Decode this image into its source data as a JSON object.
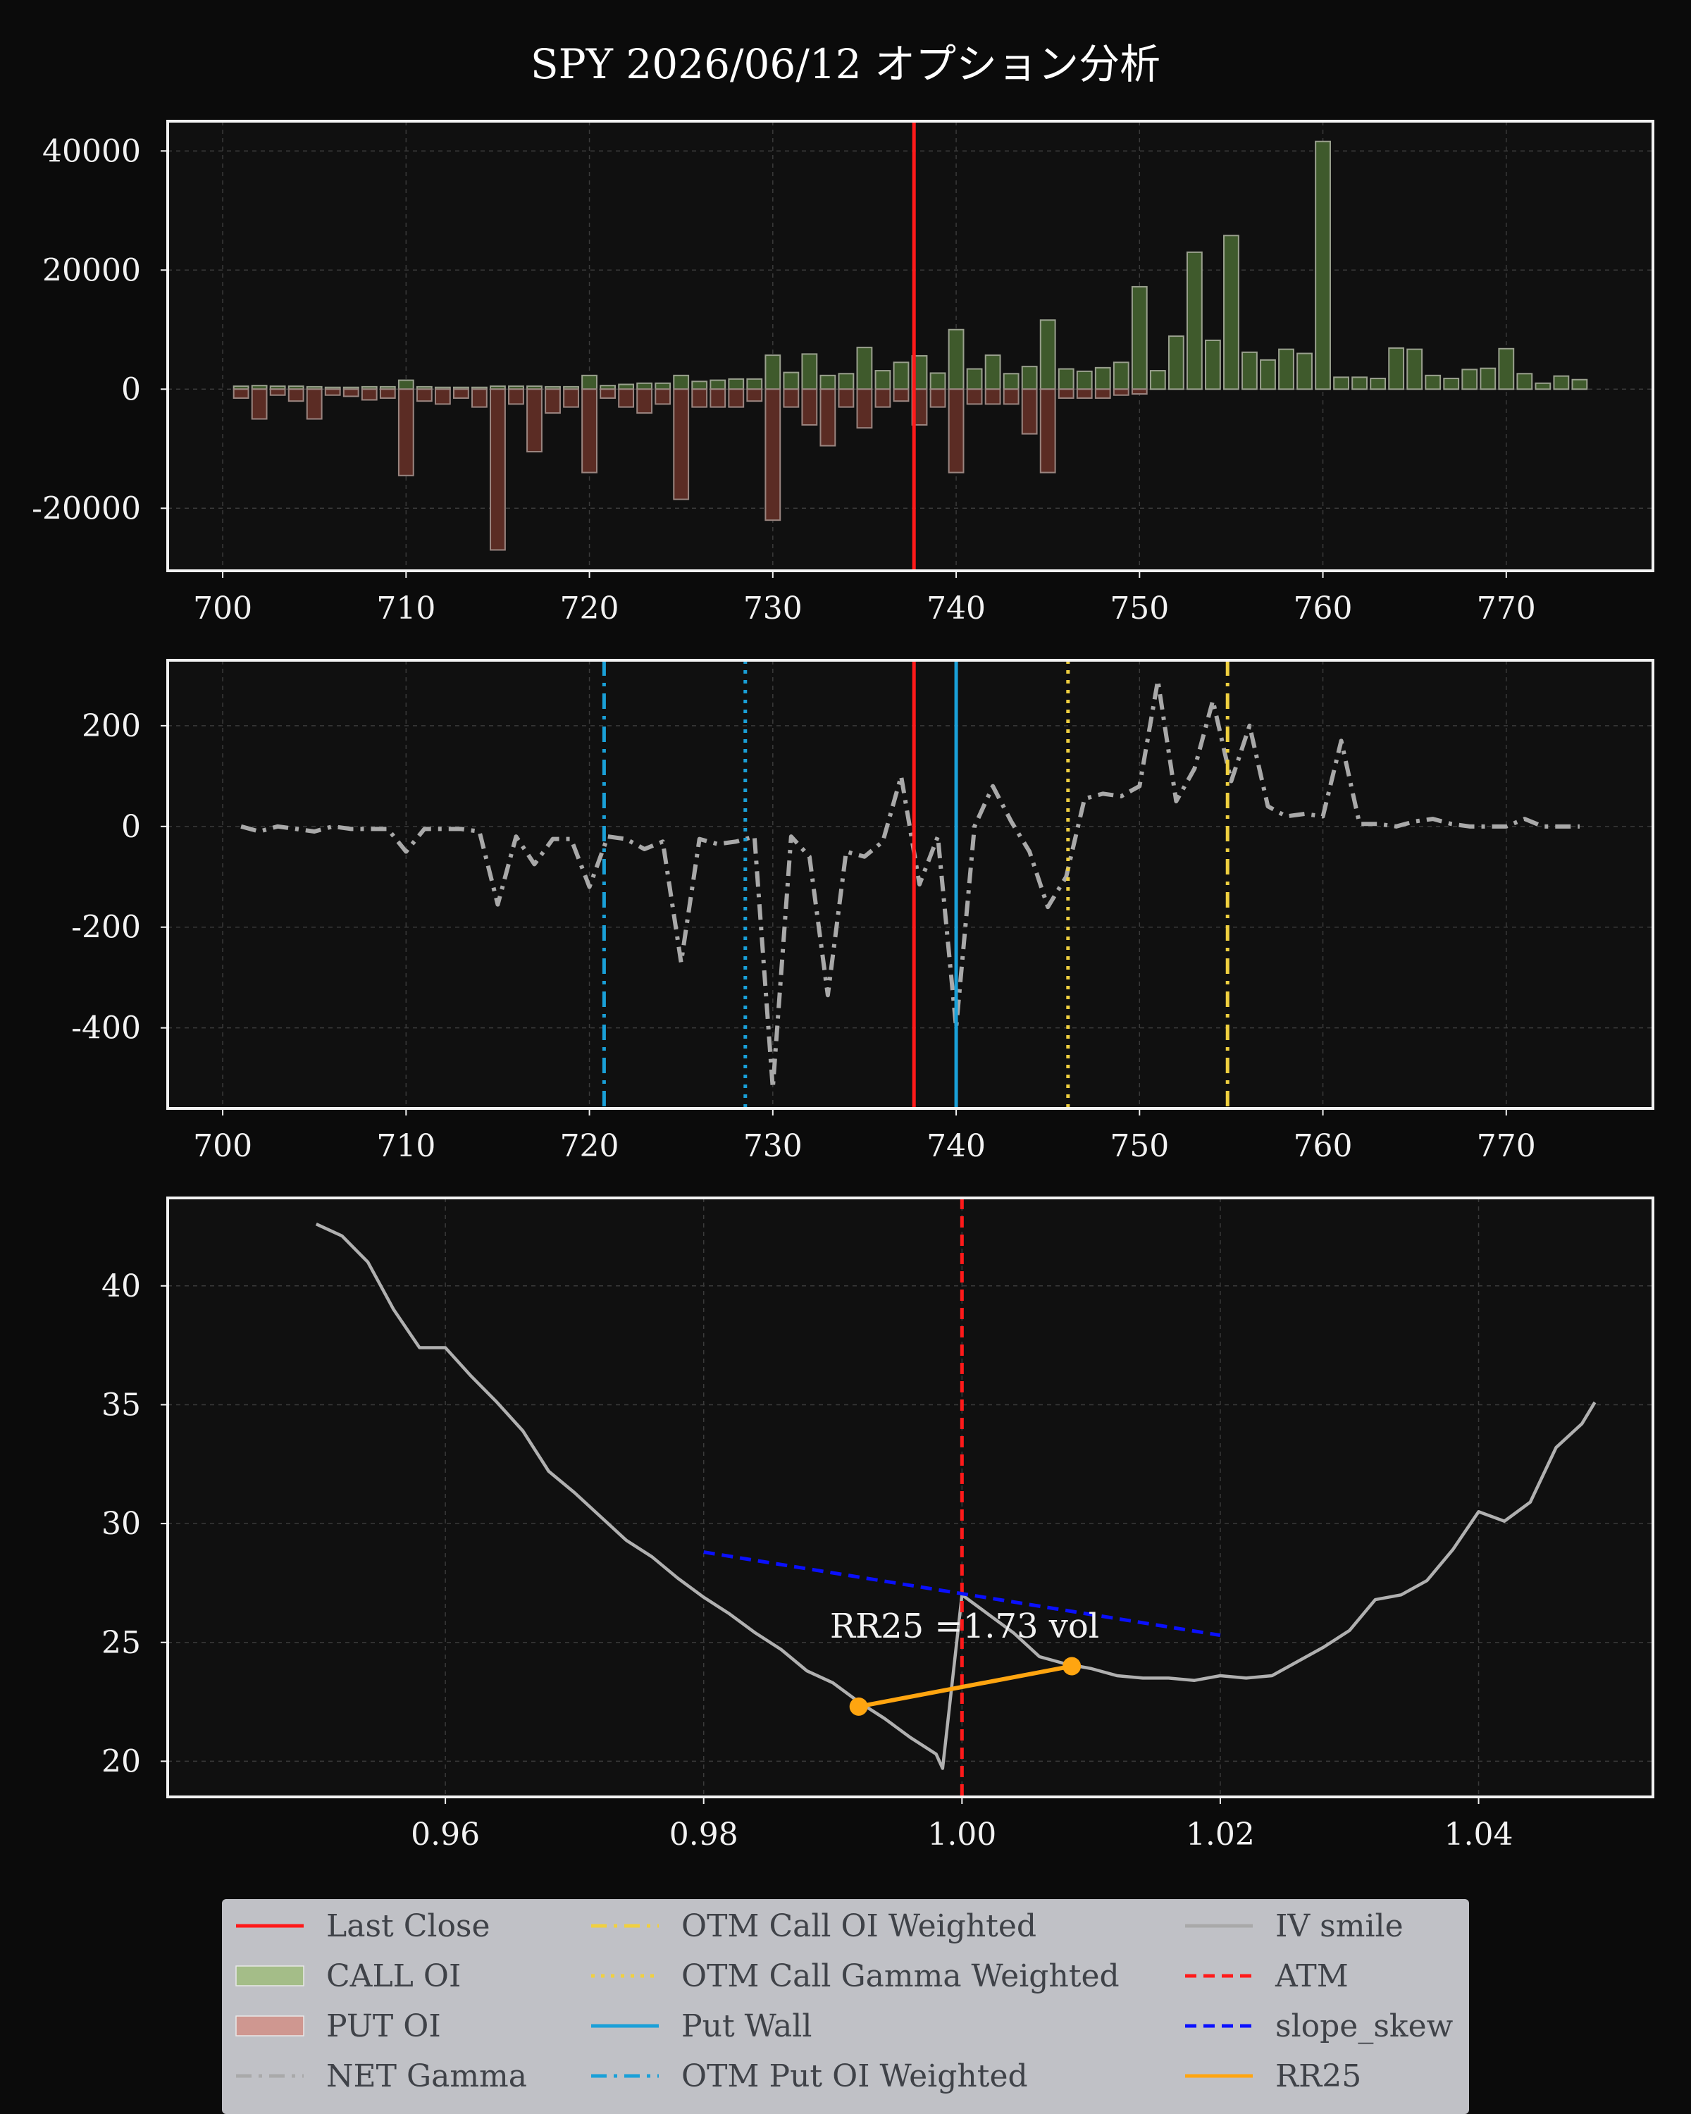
{
  "title": "SPY 2026/06/12 オプション分析",
  "colors": {
    "background": "#0b0b0b",
    "plot_bg": "#101010",
    "call": "#3f5a2c",
    "put": "#5b2c24",
    "last_close": "#ff1a1a",
    "net_gamma": "#a9a9a9",
    "put_wall": "#1aa0d8",
    "otm_put": "#1aa0d8",
    "otm_call": "#f0d040",
    "slope": "#0a10ff",
    "rr25": "#ffa510",
    "iv": "#b0b0b0"
  },
  "chart_data": [
    {
      "type": "bar",
      "panel": "oi",
      "strikes": [
        701,
        702,
        703,
        704,
        705,
        706,
        707,
        708,
        709,
        710,
        711,
        712,
        713,
        714,
        715,
        716,
        717,
        718,
        719,
        720,
        721,
        722,
        723,
        724,
        725,
        726,
        727,
        728,
        729,
        730,
        731,
        732,
        733,
        734,
        735,
        736,
        737,
        738,
        739,
        740,
        741,
        742,
        743,
        744,
        745,
        746,
        747,
        748,
        749,
        750,
        751,
        752,
        753,
        754,
        755,
        756,
        757,
        758,
        759,
        760,
        761,
        762,
        763,
        764,
        765,
        766,
        767,
        768,
        769,
        770,
        771,
        772,
        773,
        774
      ],
      "series": [
        {
          "name": "CALL OI",
          "values": [
            500,
            600,
            500,
            500,
            400,
            300,
            300,
            400,
            400,
            1500,
            400,
            300,
            300,
            300,
            500,
            500,
            500,
            400,
            400,
            2300,
            600,
            800,
            1000,
            1000,
            2300,
            1300,
            1500,
            1700,
            1700,
            5700,
            2800,
            5900,
            2300,
            2600,
            7000,
            3100,
            4500,
            5600,
            2700,
            10000,
            3400,
            5700,
            2600,
            3800,
            11600,
            3400,
            3000,
            3600,
            4500,
            17200,
            3100,
            8900,
            23000,
            8200,
            25800,
            6200,
            4900,
            6700,
            6000,
            41600,
            2000,
            2000,
            1800,
            6900,
            6700,
            2300,
            1800,
            3300,
            3500,
            6800,
            2600,
            1000,
            2200,
            1600
          ]
        },
        {
          "name": "PUT OI",
          "values": [
            -1500,
            -5000,
            -1000,
            -2000,
            -5000,
            -1000,
            -1200,
            -1800,
            -1500,
            -14500,
            -2000,
            -2500,
            -1500,
            -3000,
            -27000,
            -2500,
            -10500,
            -4000,
            -3000,
            -14000,
            -1500,
            -3000,
            -4000,
            -2500,
            -18500,
            -3000,
            -3000,
            -3000,
            -2000,
            -22000,
            -3000,
            -6000,
            -9500,
            -3000,
            -6500,
            -3000,
            -2000,
            -6000,
            -3000,
            -14000,
            -2500,
            -2500,
            -2500,
            -7500,
            -14000,
            -1500,
            -1500,
            -1500,
            -1000,
            -800,
            0,
            0,
            0,
            0,
            0,
            0,
            0,
            0,
            0,
            0,
            0,
            0,
            0,
            0,
            0,
            0,
            0,
            0,
            0,
            0,
            0,
            0,
            0,
            0
          ]
        }
      ],
      "ylim": [
        -30500,
        45000
      ],
      "xlim": [
        697,
        778
      ],
      "yticks": [
        "40000",
        "20000",
        "0",
        "-20000"
      ],
      "xticks": [
        "700",
        "710",
        "720",
        "730",
        "740",
        "750",
        "760",
        "770"
      ],
      "last_close": 737.7,
      "grid": true
    },
    {
      "type": "line",
      "panel": "gamma",
      "x": [
        701,
        702,
        703,
        704,
        705,
        706,
        707,
        708,
        709,
        710,
        711,
        712,
        713,
        714,
        715,
        716,
        717,
        718,
        719,
        720,
        721,
        722,
        723,
        724,
        725,
        726,
        727,
        728,
        729,
        730,
        731,
        732,
        733,
        734,
        735,
        736,
        737,
        738,
        739,
        740,
        741,
        742,
        743,
        744,
        745,
        746,
        747,
        748,
        749,
        750,
        751,
        752,
        753,
        754,
        755,
        756,
        757,
        758,
        759,
        760,
        761,
        762,
        763,
        764,
        765,
        766,
        767,
        768,
        769,
        770,
        771,
        772,
        773,
        774
      ],
      "series": [
        {
          "name": "NET Gamma",
          "values": [
            0,
            -10,
            0,
            -5,
            -10,
            0,
            -5,
            -5,
            -5,
            -50,
            -5,
            -5,
            -5,
            -10,
            -155,
            -20,
            -75,
            -25,
            -25,
            -120,
            -20,
            -25,
            -45,
            -30,
            -270,
            -25,
            -35,
            -30,
            -20,
            -520,
            -20,
            -60,
            -335,
            -50,
            -60,
            -30,
            100,
            -115,
            -20,
            -400,
            0,
            80,
            10,
            -50,
            -160,
            -100,
            55,
            65,
            60,
            80,
            290,
            50,
            115,
            250,
            90,
            200,
            40,
            20,
            25,
            20,
            170,
            5,
            5,
            0,
            10,
            15,
            5,
            0,
            0,
            0,
            15,
            0,
            0,
            0
          ]
        }
      ],
      "ylim": [
        -560,
        330
      ],
      "xlim": [
        697,
        778
      ],
      "yticks": [
        "200",
        "0",
        "-200",
        "-400"
      ],
      "xticks": [
        "700",
        "710",
        "720",
        "730",
        "740",
        "750",
        "760",
        "770"
      ],
      "last_close": 737.7,
      "put_wall": 740,
      "otm_put_oi_weighted": 720.8,
      "otm_put_gamma_weighted": 728.5,
      "otm_call_oi_weighted": 754.8,
      "otm_call_gamma_weighted": 746.1,
      "grid": true
    },
    {
      "type": "line",
      "panel": "iv",
      "x": [
        0.95,
        0.952,
        0.954,
        0.956,
        0.958,
        0.96,
        0.962,
        0.964,
        0.966,
        0.968,
        0.97,
        0.972,
        0.974,
        0.976,
        0.978,
        0.98,
        0.982,
        0.984,
        0.986,
        0.988,
        0.99,
        0.992,
        0.994,
        0.996,
        0.998,
        0.9985,
        1.0,
        1.002,
        1.004,
        1.006,
        1.008,
        1.01,
        1.012,
        1.014,
        1.016,
        1.018,
        1.02,
        1.022,
        1.024,
        1.026,
        1.028,
        1.03,
        1.032,
        1.034,
        1.036,
        1.038,
        1.04,
        1.042,
        1.044,
        1.046,
        1.048,
        1.049
      ],
      "series": [
        {
          "name": "IV smile",
          "values": [
            42.6,
            42.1,
            41.0,
            39.0,
            37.4,
            37.4,
            36.2,
            35.1,
            33.9,
            32.2,
            31.3,
            30.3,
            29.3,
            28.6,
            27.7,
            26.9,
            26.2,
            25.4,
            24.7,
            23.8,
            23.3,
            22.5,
            21.8,
            21.0,
            20.3,
            19.7,
            27.0,
            26.2,
            25.4,
            24.4,
            24.1,
            23.9,
            23.6,
            23.5,
            23.5,
            23.4,
            23.6,
            23.5,
            23.6,
            24.2,
            24.8,
            25.5,
            26.8,
            27.0,
            27.6,
            28.9,
            30.5,
            30.1,
            30.9,
            33.2,
            34.2,
            35.1
          ]
        },
        {
          "name": "slope_skew",
          "x": [
            0.98,
            1.02
          ],
          "values": [
            28.8,
            25.3
          ]
        },
        {
          "name": "RR25",
          "x": [
            0.992,
            1.0085
          ],
          "values": [
            22.3,
            24.0
          ]
        }
      ],
      "atm": 1.0,
      "ylim": [
        18.5,
        43.7
      ],
      "xlim": [
        0.9385,
        1.0535
      ],
      "yticks": [
        "40",
        "35",
        "30",
        "25",
        "20"
      ],
      "xticks": [
        "0.96",
        "0.98",
        "1.00",
        "1.02",
        "1.04"
      ],
      "annotation": "RR25 =1.73 vol",
      "grid": true
    }
  ],
  "legend": [
    {
      "label": "Last Close",
      "kind": "line",
      "color": "#ff1a1a",
      "dash": "solid"
    },
    {
      "label": "CALL OI",
      "kind": "patch",
      "color": "#a4bd88"
    },
    {
      "label": "PUT OI",
      "kind": "patch",
      "color": "#cf9790"
    },
    {
      "label": "NET Gamma",
      "kind": "line",
      "color": "#a9a9a9",
      "dash": "dashdot"
    },
    {
      "label": "OTM Call OI Weighted",
      "kind": "line",
      "color": "#f0d040",
      "dash": "dashdot"
    },
    {
      "label": "OTM Call Gamma Weighted",
      "kind": "line",
      "color": "#f0d040",
      "dash": "dotted"
    },
    {
      "label": "Put Wall",
      "kind": "line",
      "color": "#1aa0d8",
      "dash": "solid"
    },
    {
      "label": "OTM Put OI Weighted",
      "kind": "line",
      "color": "#1aa0d8",
      "dash": "dashdot"
    },
    {
      "label": "IV smile",
      "kind": "line",
      "color": "#a9a9a9",
      "dash": "solid"
    },
    {
      "label": "ATM",
      "kind": "line",
      "color": "#ff1a1a",
      "dash": "dashed"
    },
    {
      "label": "slope_skew",
      "kind": "line",
      "color": "#0a10ff",
      "dash": "dashed"
    },
    {
      "label": "RR25",
      "kind": "line",
      "color": "#ffa510",
      "dash": "solid"
    }
  ]
}
